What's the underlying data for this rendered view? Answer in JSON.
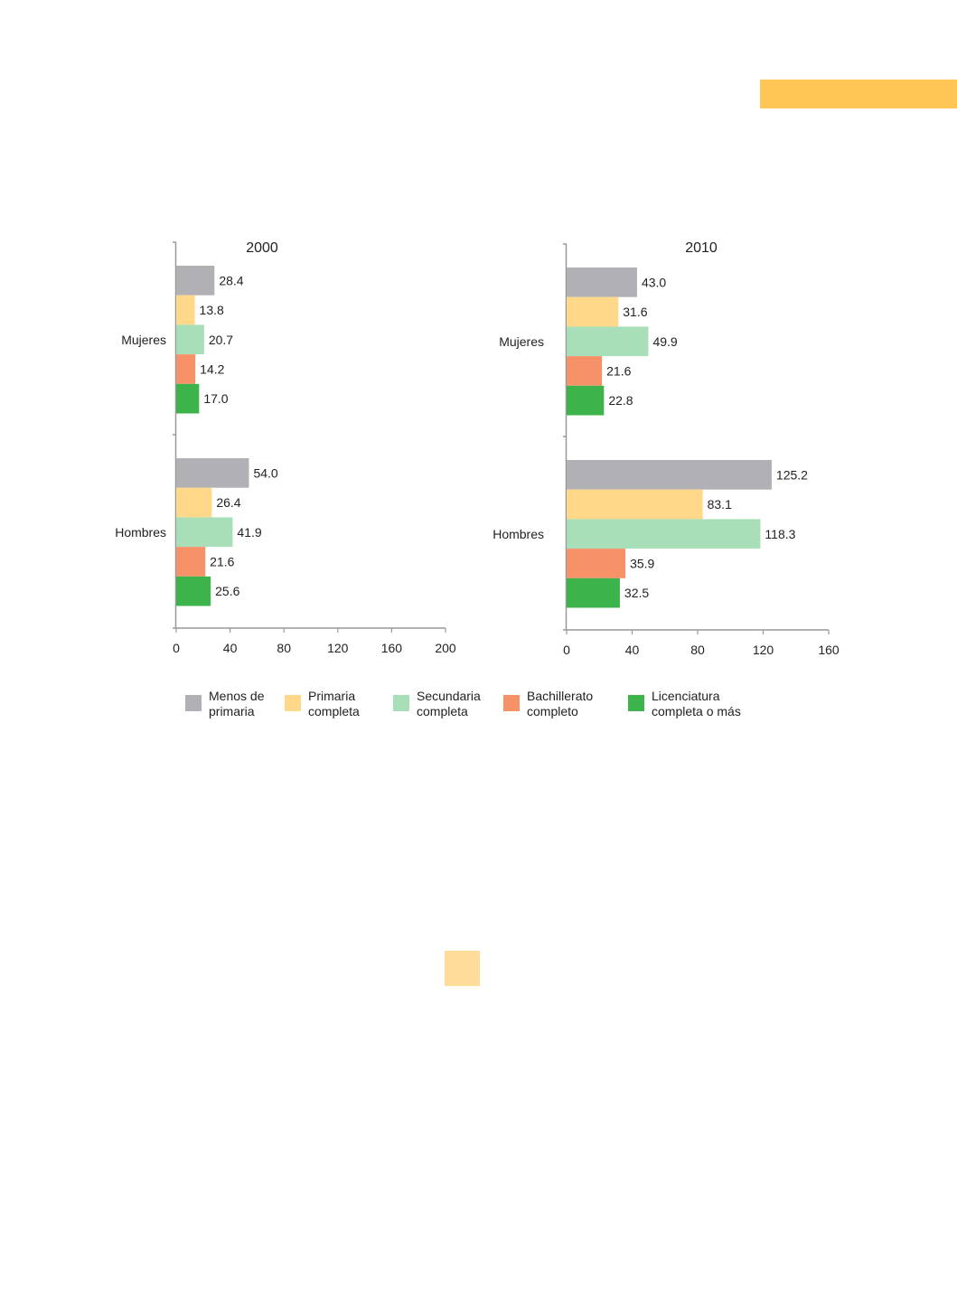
{
  "chart_data": [
    {
      "type": "bar",
      "orientation": "horizontal",
      "title": "2000",
      "categories": [
        "Mujeres",
        "Hombres"
      ],
      "series": [
        {
          "name": "Menos de primaria",
          "values": [
            28.4,
            54.0
          ],
          "labels": [
            "28.4",
            "54.0"
          ]
        },
        {
          "name": "Primaria completa",
          "values": [
            13.8,
            26.4
          ],
          "labels": [
            "13.8",
            "26.4"
          ]
        },
        {
          "name": "Secundaria completa",
          "values": [
            20.7,
            41.9
          ],
          "labels": [
            "20.7",
            "41.9"
          ]
        },
        {
          "name": "Bachillerato completo",
          "values": [
            14.2,
            21.6
          ],
          "labels": [
            "14.2",
            "21.6"
          ]
        },
        {
          "name": "Licenciatura completa o más",
          "values": [
            17.0,
            25.6
          ],
          "labels": [
            "17.0",
            "25.6"
          ]
        }
      ],
      "xlim": [
        0,
        200
      ],
      "xticks": [
        "0",
        "40",
        "80",
        "120",
        "160",
        "200"
      ],
      "grid": false
    },
    {
      "type": "bar",
      "orientation": "horizontal",
      "title": "2010",
      "categories": [
        "Mujeres",
        "Hombres"
      ],
      "series": [
        {
          "name": "Menos de primaria",
          "values": [
            43.0,
            125.2
          ],
          "labels": [
            "43.0",
            "125.2"
          ]
        },
        {
          "name": "Primaria completa",
          "values": [
            31.6,
            83.1
          ],
          "labels": [
            "31.6",
            "83.1"
          ]
        },
        {
          "name": "Secundaria completa",
          "values": [
            49.9,
            118.3
          ],
          "labels": [
            "49.9",
            "118.3"
          ]
        },
        {
          "name": "Bachillerato completo",
          "values": [
            21.6,
            35.9
          ],
          "labels": [
            "21.6",
            "35.9"
          ]
        },
        {
          "name": "Licenciatura completa o más",
          "values": [
            22.8,
            32.5
          ],
          "labels": [
            "22.8",
            "32.5"
          ]
        }
      ],
      "xlim": [
        0,
        160
      ],
      "xticks": [
        "0",
        "40",
        "80",
        "120",
        "160"
      ],
      "grid": false
    }
  ],
  "legend": {
    "placement": "bottom",
    "items": [
      {
        "label": "Menos de\nprimaria",
        "color": "#b1b0b5"
      },
      {
        "label": "Primaria\ncompleta",
        "color": "#ffd88a"
      },
      {
        "label": "Secundaria\ncompleta",
        "color": "#a9dfb8"
      },
      {
        "label": "Bachillerato\ncompleto",
        "color": "#f79168"
      },
      {
        "label": "Licenciatura\ncompleta o más",
        "color": "#3cb44b"
      }
    ]
  },
  "colors": {
    "accent": "#ffc655",
    "page_marker": "#ffdc9a",
    "axis": "#999999"
  }
}
